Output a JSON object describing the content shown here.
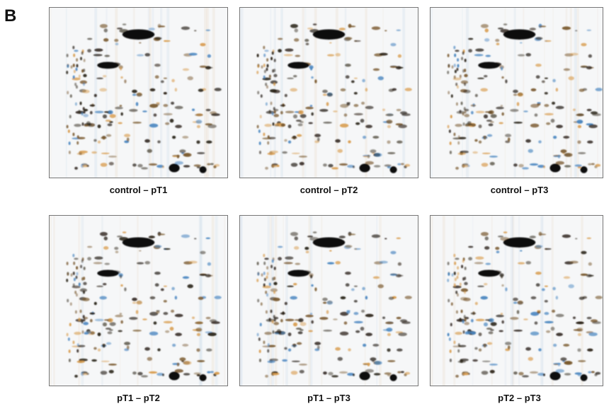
{
  "panel_label": "B",
  "panels": [
    {
      "caption": "control – pT1"
    },
    {
      "caption": "control – pT2"
    },
    {
      "caption": "control – pT3"
    },
    {
      "caption": "pT1 – pT2"
    },
    {
      "caption": "pT1 – pT3"
    },
    {
      "caption": "pT2 – pT3"
    }
  ]
}
